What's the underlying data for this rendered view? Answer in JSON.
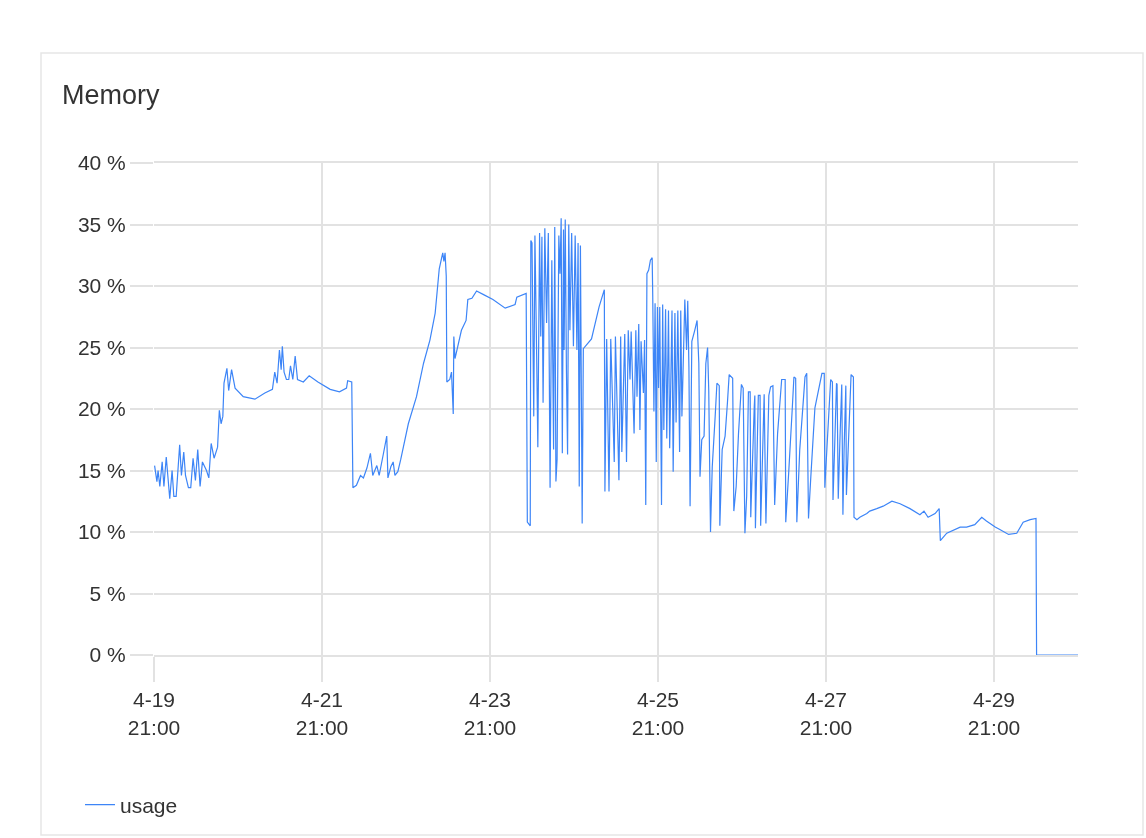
{
  "chart_data": {
    "type": "line",
    "title": "Memory",
    "x": [
      "--04-19T21:10",
      "--04-19T21:50",
      "--04-19T22:10",
      "--04-19T22:40",
      "--04-19T23:20",
      "--04-19T23:50",
      "--04-20T00:30",
      "--04-20T01:30",
      "--04-20T02:10",
      "--04-20T02:40",
      "--04-20T03:20",
      "--04-20T04:20",
      "--04-20T04:50",
      "--04-20T05:30",
      "--04-20T06:00",
      "--04-20T06:50",
      "--04-20T07:30",
      "--04-20T08:10",
      "--04-20T08:50",
      "--04-20T09:30",
      "--04-20T10:10",
      "--04-20T10:50",
      "--04-20T12:00",
      "--04-20T12:40",
      "--04-20T13:20",
      "--04-20T14:10",
      "--04-20T15:10",
      "--04-20T15:40",
      "--04-20T16:10",
      "--04-20T16:40",
      "--04-20T17:00",
      "--04-20T17:50",
      "--04-20T18:20",
      "--04-20T19:10",
      "--04-20T20:10",
      "--04-20T22:30",
      "--04-21T01:50",
      "--04-21T04:40",
      "--04-21T06:50",
      "--04-21T07:30",
      "--04-21T08:10",
      "--04-21T08:50",
      "--04-21T09:20",
      "--04-21T09:40",
      "--04-21T10:10",
      "--04-21T10:50",
      "--04-21T11:30",
      "--04-21T12:00",
      "--04-21T12:40",
      "--04-21T13:20",
      "--04-21T14:00",
      "--04-21T15:40",
      "--04-21T17:20",
      "--04-21T19:50",
      "--04-21T23:20",
      "--04-22T02:00",
      "--04-22T04:00",
      "--04-22T04:20",
      "--04-22T05:30",
      "--04-22T05:50",
      "--04-22T06:50",
      "--04-22T08:00",
      "--04-22T08:50",
      "--04-22T09:50",
      "--04-22T10:50",
      "--04-22T11:30",
      "--04-22T12:40",
      "--04-22T13:20",
      "--04-22T14:30",
      "--04-22T15:30",
      "--04-22T15:50",
      "--04-22T16:40",
      "--04-22T17:20",
      "--04-22T17:50",
      "--04-22T18:40",
      "--04-22T19:30",
      "--04-22T21:40",
      "--04-23T00:00",
      "--04-23T02:00",
      "--04-23T03:50",
      "--04-23T05:20",
      "--04-23T06:30",
      "--04-23T07:30",
      "--04-23T07:50",
      "--04-23T08:10",
      "--04-23T08:30",
      "--04-23T08:40",
      "--04-23T09:30",
      "--04-23T10:00",
      "--04-23T10:30",
      "--04-23T10:40",
      "--04-23T11:00",
      "--04-23T12:50",
      "--04-23T14:10",
      "--04-23T14:40",
      "--04-23T15:50",
      "--04-23T17:10",
      "--04-23T19:10",
      "--04-23T21:50",
      "--04-24T01:20",
      "--04-24T04:10",
      "--04-24T04:40",
      "--04-24T07:20",
      "--04-24T07:40",
      "--04-24T08:30",
      "--04-24T08:40",
      "--04-24T09:00",
      "--04-24T09:30",
      "--04-24T09:50",
      "--04-24T10:20",
      "--04-24T10:40",
      "--04-24T11:10",
      "--04-24T11:30",
      "--04-24T11:50",
      "--04-24T12:10",
      "--04-24T12:40",
      "--04-24T13:10",
      "--04-24T13:40",
      "--04-24T14:10",
      "--04-24T14:40",
      "--04-24T15:10",
      "--04-24T15:30",
      "--04-24T15:50",
      "--04-24T16:10",
      "--04-24T16:40",
      "--04-24T17:00",
      "--04-24T17:20",
      "--04-24T17:40",
      "--04-24T18:00",
      "--04-24T18:10",
      "--04-24T18:30",
      "--04-24T18:50",
      "--04-24T19:10",
      "--04-24T19:30",
      "--04-24T19:50",
      "--04-24T20:20",
      "--04-24T20:50",
      "--04-24T21:20",
      "--04-24T21:50",
      "--04-24T22:10",
      "--04-24T22:30",
      "--04-24T22:50",
      "--04-24T23:20",
      "--04-24T23:40",
      "--04-25T02:00",
      "--04-25T04:10",
      "--04-25T05:40",
      "--04-25T05:50",
      "--04-25T06:20",
      "--04-25T07:00",
      "--04-25T07:30",
      "--04-25T08:30",
      "--04-25T08:50",
      "--04-25T09:50",
      "--04-25T10:20",
      "--04-25T10:40",
      "--04-25T11:30",
      "--04-25T12:00",
      "--04-25T12:30",
      "--04-25T13:00",
      "--04-25T13:20",
      "--04-25T14:10",
      "--04-25T14:40",
      "--04-25T15:00",
      "--04-25T15:30",
      "--04-25T15:50",
      "--04-25T16:10",
      "--04-25T16:50",
      "--04-25T17:10",
      "--04-25T17:30",
      "--04-25T17:50",
      "--04-25T18:20",
      "--04-25T18:50",
      "--04-25T19:20",
      "--04-25T19:30",
      "--04-25T19:50",
      "--04-25T20:10",
      "--04-25T20:30",
      "--04-25T20:50",
      "--04-25T21:10",
      "--04-25T21:30",
      "--04-25T22:00",
      "--04-25T22:20",
      "--04-25T22:40",
      "--04-25T23:10",
      "--04-25T23:30",
      "--04-26T00:00",
      "--04-26T00:20",
      "--04-26T01:00",
      "--04-26T01:20",
      "--04-26T01:50",
      "--04-26T02:10",
      "--04-26T02:40",
      "--04-26T03:10",
      "--04-26T03:30",
      "--04-26T03:50",
      "--04-26T04:40",
      "--04-26T05:10",
      "--04-26T05:30",
      "--04-26T05:50",
      "--04-26T06:10",
      "--04-26T06:40",
      "--04-26T07:30",
      "--04-26T08:10",
      "--04-26T08:40",
      "--04-26T09:00",
      "--04-26T09:30",
      "--04-26T10:10",
      "--04-26T10:40",
      "--04-26T11:10",
      "--04-26T11:30",
      "--04-26T12:00",
      "--04-26T12:30",
      "--04-26T13:20",
      "--04-26T13:50",
      "--04-26T14:30",
      "--04-26T14:40",
      "--04-26T15:20",
      "--04-26T16:10",
      "--04-26T16:50",
      "--04-26T17:20",
      "--04-26T18:20",
      "--04-26T18:40",
      "--04-26T19:20",
      "--04-26T20:00",
      "--04-26T20:50",
      "--04-26T21:20",
      "--04-26T21:50",
      "--04-26T22:20",
      "--04-26T22:50",
      "--04-26T23:20",
      "--04-26T23:30",
      "--04-27T00:30",
      "--04-27T00:40",
      "--04-27T00:50",
      "--04-27T01:40",
      "--04-27T02:10",
      "--04-27T02:20",
      "--04-27T03:20",
      "--04-27T03:50",
      "--04-27T04:40",
      "--04-27T05:10",
      "--04-27T05:50",
      "--04-27T06:20",
      "--04-27T07:10",
      "--04-27T08:20",
      "--04-27T09:20",
      "--04-27T09:30",
      "--04-27T10:20",
      "--04-27T11:20",
      "--04-27T11:50",
      "--04-27T12:20",
      "--04-27T12:40",
      "--04-27T13:30",
      "--04-27T14:30",
      "--04-27T15:00",
      "--04-27T15:30",
      "--04-27T16:00",
      "--04-27T16:40",
      "--04-27T17:50",
      "--04-27T18:50",
      "--04-27T19:50",
      "--04-27T20:30",
      "--04-27T20:40",
      "--04-27T21:20",
      "--04-27T22:20",
      "--04-27T22:50",
      "--04-27T23:00",
      "--04-27T23:30",
      "--04-28T00:00",
      "--04-28T00:10",
      "--04-28T00:30",
      "--04-28T01:00",
      "--04-28T01:30",
      "--04-28T01:50",
      "--04-28T02:10",
      "--04-28T02:40",
      "--04-28T02:50",
      "--04-28T03:30",
      "--04-28T04:10",
      "--04-28T04:50",
      "--04-28T05:00",
      "--04-28T05:50",
      "--04-28T06:40",
      "--04-28T08:40",
      "--04-28T09:30",
      "--04-28T11:30",
      "--04-28T13:20",
      "--04-28T15:50",
      "--04-28T18:10",
      "--04-28T21:00",
      "--04-28T23:50",
      "--04-29T01:00",
      "--04-29T02:10",
      "--04-29T04:10",
      "--04-29T05:20",
      "--04-29T05:40",
      "--04-29T07:30",
      "--04-29T11:20",
      "--04-29T13:10",
      "--04-29T15:30",
      "--04-29T17:30",
      "--04-29T18:50",
      "--04-29T21:20",
      "--04-29T22:40",
      "--04-30T01:10",
      "--04-30T03:30",
      "--04-30T05:20",
      "--04-30T07:20",
      "--04-30T09:00",
      "--04-30T09:10",
      "--04-30T21:00"
    ],
    "series": [
      {
        "name": "usage",
        "color": "#3d85f7",
        "values": [
          15.4,
          14.1,
          15.0,
          13.7,
          15.7,
          13.7,
          16.1,
          12.7,
          15.0,
          12.9,
          12.9,
          17.1,
          14.6,
          16.5,
          14.6,
          13.6,
          13.6,
          16.0,
          14.2,
          16.7,
          13.7,
          15.7,
          15.0,
          14.4,
          17.2,
          16.0,
          16.9,
          19.9,
          18.8,
          19.4,
          22.1,
          23.3,
          21.5,
          23.2,
          21.7,
          21.0,
          20.8,
          21.3,
          21.6,
          23.0,
          22.1,
          24.8,
          23.2,
          25.1,
          23.0,
          22.4,
          22.4,
          23.5,
          22.4,
          24.3,
          22.4,
          22.2,
          22.7,
          22.2,
          21.6,
          21.4,
          21.7,
          22.3,
          22.2,
          13.6,
          13.8,
          14.6,
          14.4,
          15.2,
          16.4,
          14.6,
          15.4,
          14.6,
          16.3,
          17.8,
          14.4,
          15.3,
          15.7,
          14.6,
          14.9,
          15.9,
          18.8,
          21.0,
          23.7,
          25.6,
          27.8,
          31.4,
          32.7,
          32.0,
          32.7,
          30.8,
          22.2,
          22.4,
          23.0,
          19.6,
          25.9,
          24.1,
          26.4,
          27.2,
          28.9,
          29.0,
          29.6,
          29.3,
          28.9,
          28.2,
          28.5,
          29.1,
          29.4,
          10.8,
          10.5,
          33.7,
          33.5,
          19.4,
          34.1,
          24.3,
          16.9,
          34.3,
          25.9,
          34.0,
          20.5,
          34.7,
          27.0,
          34.3,
          13.6,
          32.1,
          16.7,
          34.8,
          14.1,
          15.9,
          34.1,
          31.0,
          35.5,
          16.4,
          34.6,
          24.8,
          35.4,
          23.2,
          16.3,
          35.0,
          26.4,
          34.3,
          25.1,
          34.1,
          24.8,
          33.5,
          13.7,
          33.3,
          10.7,
          24.9,
          25.7,
          28.3,
          29.7,
          13.3,
          25.7,
          13.3,
          25.7,
          15.7,
          25.9,
          14.2,
          25.9,
          16.5,
          26.1,
          15.7,
          26.4,
          22.4,
          26.3,
          18.0,
          26.4,
          21.0,
          26.9,
          18.3,
          25.5,
          21.3,
          25.6,
          12.2,
          31.0,
          31.3,
          32.1,
          32.3,
          29.1,
          19.8,
          28.6,
          15.7,
          28.3,
          21.7,
          28.3,
          12.2,
          28.5,
          18.3,
          28.1,
          17.6,
          28.0,
          16.8,
          28.0,
          14.9,
          27.8,
          18.9,
          28.0,
          16.5,
          28.0,
          19.4,
          28.9,
          24.8,
          28.8,
          23.4,
          12.1,
          25.5,
          26.4,
          27.2,
          23.7,
          14.5,
          17.5,
          17.8,
          23.7,
          25.0,
          21.5,
          10.0,
          15.3,
          19.4,
          22.1,
          21.9,
          10.5,
          16.7,
          17.8,
          20.5,
          22.8,
          22.5,
          11.7,
          13.7,
          18.0,
          22.0,
          21.7,
          9.9,
          12.9,
          21.4,
          21.4,
          11.2,
          20.2,
          21.1,
          10.3,
          21.1,
          21.1,
          10.5,
          21.2,
          10.7,
          21.1,
          21.8,
          21.9,
          12.2,
          18.0,
          22.4,
          22.4,
          10.8,
          14.8,
          19.9,
          22.6,
          22.5,
          10.8,
          16.7,
          20.6,
          22.6,
          22.9,
          11.1,
          14.5,
          20.1,
          21.5,
          22.9,
          22.9,
          13.6,
          17.2,
          22.4,
          22.2,
          12.6,
          17.2,
          22.1,
          22.0,
          12.7,
          17.7,
          22.0,
          11.4,
          16.7,
          21.9,
          13.0,
          17.9,
          22.8,
          22.6,
          11.2,
          11.0,
          11.2,
          11.5,
          11.7,
          11.9,
          12.1,
          12.5,
          12.3,
          11.9,
          11.4,
          11.7,
          11.2,
          11.5,
          11.9,
          9.3,
          9.9,
          10.4,
          10.4,
          10.6,
          11.2,
          10.9,
          10.4,
          10.2,
          9.8,
          9.9,
          10.8,
          11.0,
          11.1,
          0,
          0
        ]
      }
    ],
    "xlim": [
      "--04-19T21:00",
      "--04-30T21:00"
    ],
    "xticks": [
      {
        "value": "--04-19T21:00",
        "label": "4-19\n21:00"
      },
      {
        "value": "--04-21T21:00",
        "label": "4-21\n21:00"
      },
      {
        "value": "--04-23T21:00",
        "label": "4-23\n21:00"
      },
      {
        "value": "--04-25T21:00",
        "label": "4-25\n21:00"
      },
      {
        "value": "--04-27T21:00",
        "label": "4-27\n21:00"
      },
      {
        "value": "--04-29T21:00",
        "label": "4-29\n21:00"
      }
    ],
    "ylim": [
      0,
      40
    ],
    "yticks": [
      {
        "value": 0,
        "label": "0 %"
      },
      {
        "value": 5,
        "label": "5 %"
      },
      {
        "value": 10,
        "label": "10 %"
      },
      {
        "value": 15,
        "label": "15 %"
      },
      {
        "value": 20,
        "label": "20 %"
      },
      {
        "value": 25,
        "label": "25 %"
      },
      {
        "value": 30,
        "label": "30 %"
      },
      {
        "value": 35,
        "label": "35 %"
      },
      {
        "value": 40,
        "label": "40 %"
      }
    ],
    "grid": true,
    "legend": "bottom left"
  }
}
